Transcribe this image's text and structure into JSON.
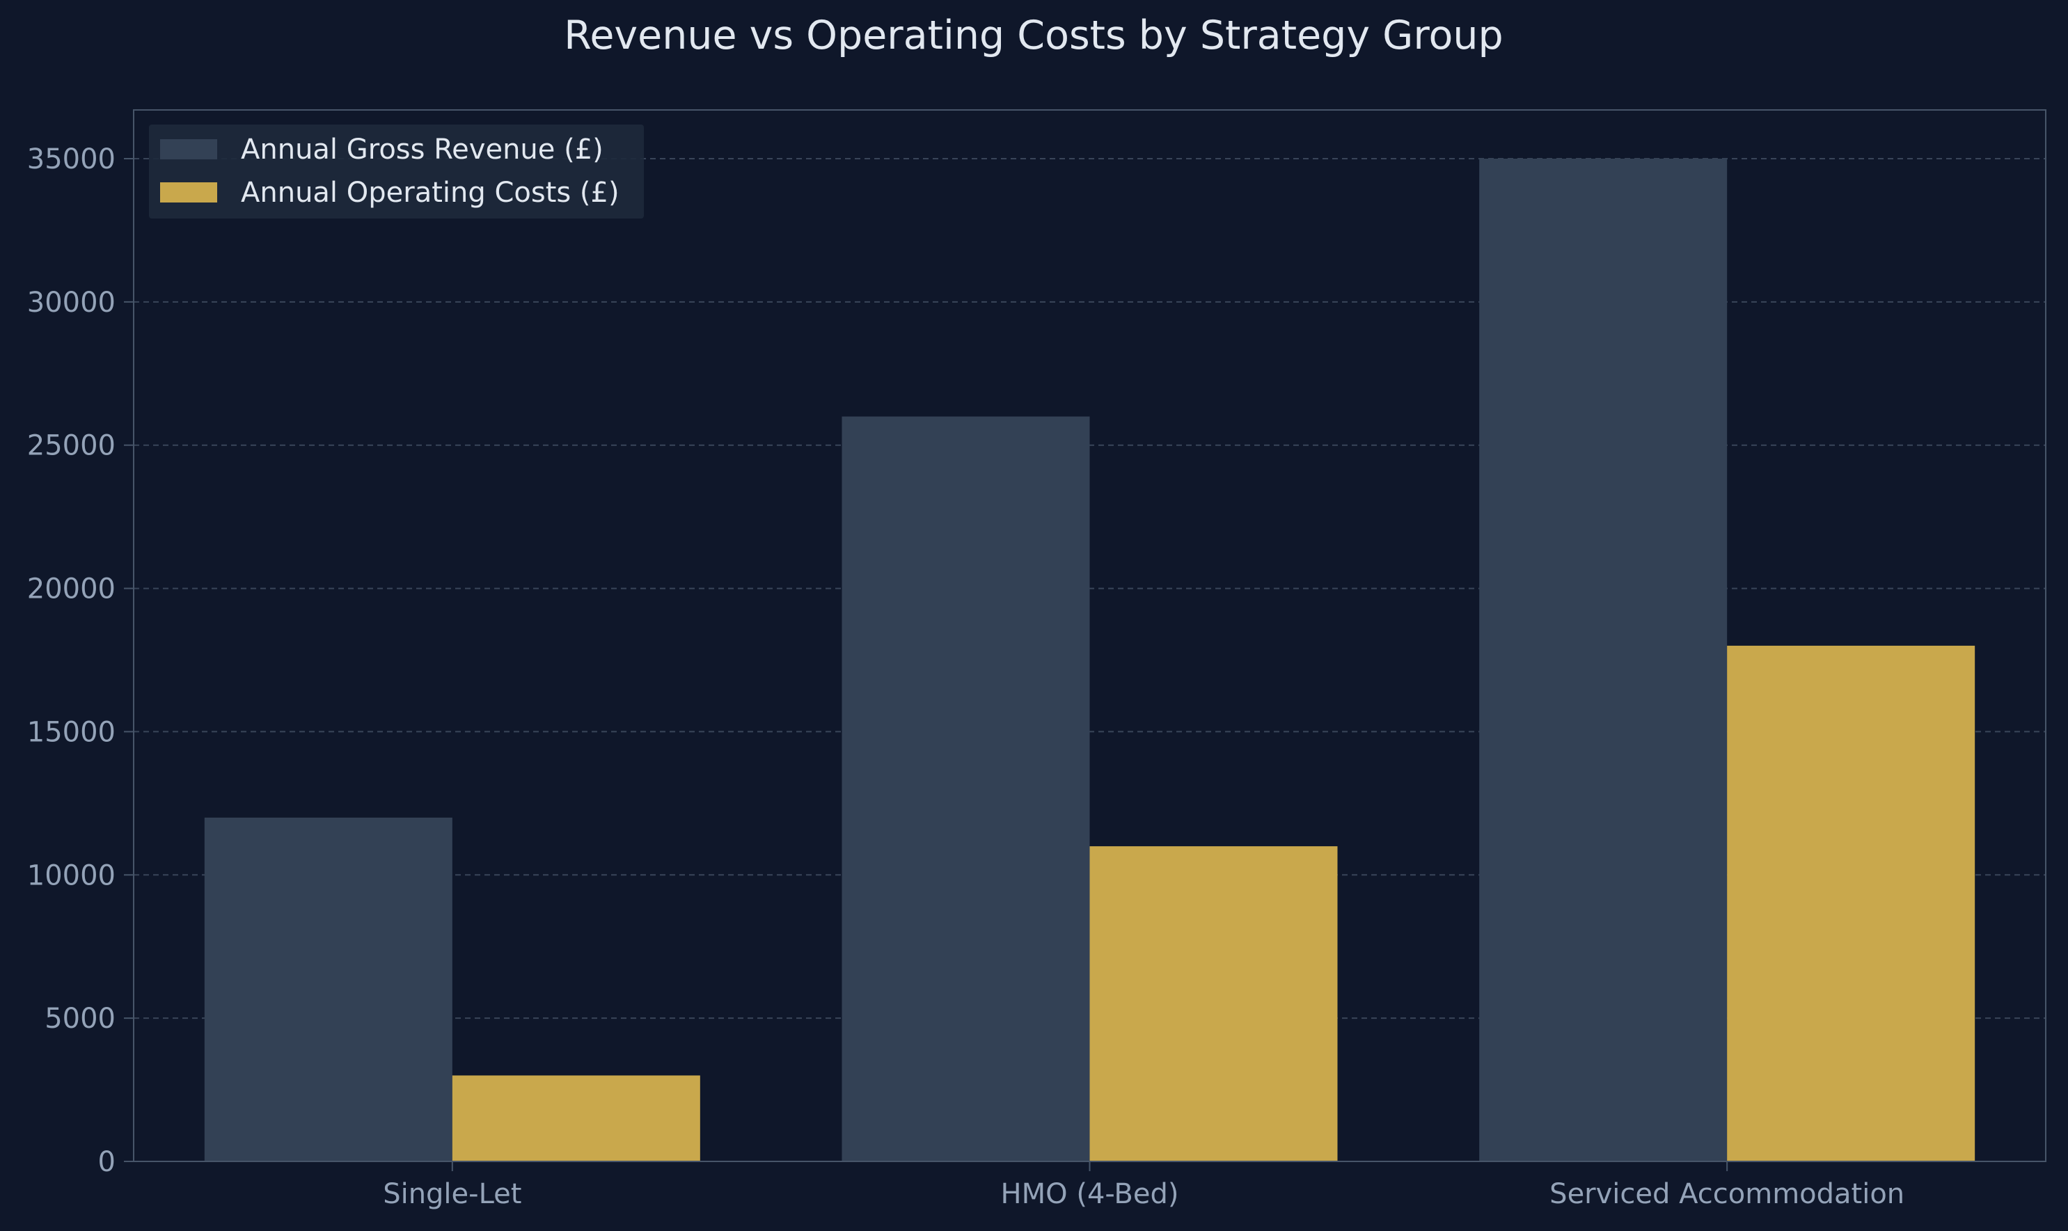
{
  "chart_data": {
    "type": "bar",
    "title": "Revenue vs Operating Costs by Strategy Group",
    "xlabel": "",
    "ylabel": "",
    "categories": [
      "Single-Let",
      "HMO (4-Bed)",
      "Serviced Accommodation"
    ],
    "series": [
      {
        "name": "Annual Gross Revenue (£)",
        "values": [
          12000,
          26000,
          35000
        ],
        "color": "#334155"
      },
      {
        "name": "Annual Operating Costs (£)",
        "values": [
          3000,
          11000,
          18000
        ],
        "color": "#c9a84c"
      }
    ],
    "ylim": [
      0,
      36700
    ],
    "yticks": [
      "0",
      "5000",
      "10000",
      "15000",
      "20000",
      "25000",
      "30000",
      "35000"
    ],
    "grid": "horizontal dashed",
    "legend": "top-left",
    "colors": {
      "background": "#0f172a",
      "axis": "#475569",
      "grid": "#475569",
      "text": "#e2e8f0",
      "tick_text": "#94a3b8",
      "legend_bg": "#1e293b"
    }
  }
}
